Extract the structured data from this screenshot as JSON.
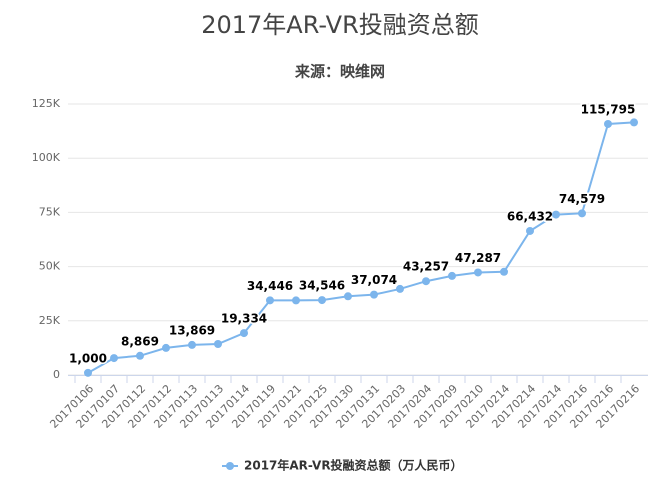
{
  "chart_data": {
    "type": "line",
    "title": "2017年AR-VR投融资总额",
    "subtitle": "来源：映维网",
    "categories": [
      "20170106",
      "20170107",
      "20170112",
      "20170112",
      "20170113",
      "20170113",
      "20170114",
      "20170119",
      "20170121",
      "20170125",
      "20170130",
      "20170131",
      "20170203",
      "20170204",
      "20170209",
      "20170210",
      "20170214",
      "20170214",
      "20170214",
      "20170216",
      "20170216",
      "20170216"
    ],
    "series": [
      {
        "name": "2017年AR-VR投融资总额（万人民币）",
        "color": "#7cb5ec",
        "values": [
          1000,
          7800,
          8869,
          12500,
          13869,
          14300,
          19334,
          34446,
          34400,
          34546,
          36300,
          37074,
          39700,
          43257,
          45700,
          47287,
          47600,
          66432,
          74000,
          74579,
          115795,
          116500
        ],
        "value_labels": [
          "1,000",
          null,
          "8,869",
          null,
          "13,869",
          null,
          "19,334",
          "34,446",
          null,
          "34,546",
          null,
          "37,074",
          null,
          "43,257",
          null,
          "47,287",
          null,
          "66,432",
          null,
          "74,579",
          "115,795",
          null
        ]
      }
    ],
    "ylim": [
      0,
      125000
    ],
    "yticks": [
      0,
      {
        "value": 25000,
        "label": "25K"
      },
      {
        "value": 50000,
        "label": "50K"
      },
      {
        "value": 75000,
        "label": "75K"
      },
      {
        "value": 100000,
        "label": "100K"
      },
      {
        "value": 125000,
        "label": "125K"
      }
    ],
    "grid": true,
    "legend": "bottom"
  }
}
